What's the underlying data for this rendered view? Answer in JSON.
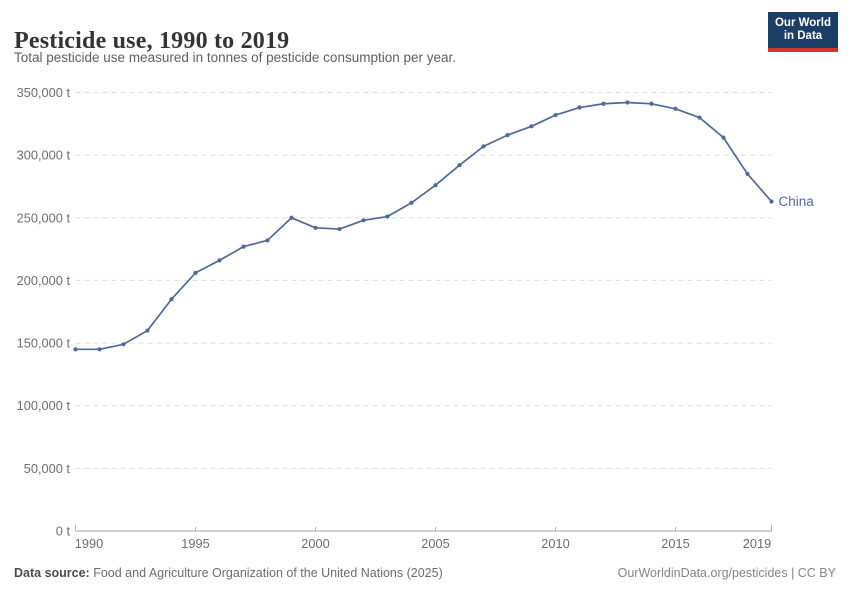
{
  "header": {
    "title": "Pesticide use, 1990 to 2019",
    "subtitle": "Total pesticide use measured in tonnes of pesticide consumption per year.",
    "logo": {
      "line1": "Our World",
      "line2": "in Data"
    }
  },
  "chart_data": {
    "type": "line",
    "title": "Pesticide use, 1990 to 2019",
    "subtitle": "Total pesticide use measured in tonnes of pesticide consumption per year.",
    "unit": "t",
    "x": [
      1990,
      1991,
      1992,
      1993,
      1994,
      1995,
      1996,
      1997,
      1998,
      1999,
      2000,
      2001,
      2002,
      2003,
      2004,
      2005,
      2006,
      2007,
      2008,
      2009,
      2010,
      2011,
      2012,
      2013,
      2014,
      2015,
      2016,
      2017,
      2018,
      2019
    ],
    "series": [
      {
        "name": "China",
        "color": "#4c6a9c",
        "values": [
          145000,
          145000,
          149000,
          160000,
          185000,
          206000,
          216000,
          227000,
          232000,
          250000,
          242000,
          241000,
          248000,
          251000,
          262000,
          276000,
          292000,
          307000,
          316000,
          323000,
          332000,
          338000,
          341000,
          342000,
          341000,
          337000,
          330000,
          314000,
          285000,
          263000
        ]
      }
    ],
    "ylim": [
      0,
      350000
    ],
    "yticks": [
      0,
      50000,
      100000,
      150000,
      200000,
      250000,
      300000,
      350000
    ],
    "ytick_labels": [
      "0 t",
      "50,000 t",
      "100,000 t",
      "150,000 t",
      "200,000 t",
      "250,000 t",
      "300,000 t",
      "350,000 t"
    ],
    "xticks": [
      1990,
      1995,
      2000,
      2005,
      2010,
      2015,
      2019
    ],
    "grid": "horizontal-dashed",
    "legend_position": "end-of-line"
  },
  "footer": {
    "source_label": "Data source:",
    "source_text": "Food and Agriculture Organization of the United Nations (2025)",
    "credit": "OurWorldinData.org/pesticides | CC BY"
  },
  "colors": {
    "accent": "#4c6a9c",
    "grid": "#dcdcdc",
    "axis": "#a5a5a5",
    "tick_mark": "#b5b5b5",
    "tick_text": "#6e6e6e",
    "title_text": "#343434",
    "subtitle_text": "#5f5f5f",
    "logo_bg": "#1a3e66",
    "logo_stripe": "#d8352a"
  }
}
